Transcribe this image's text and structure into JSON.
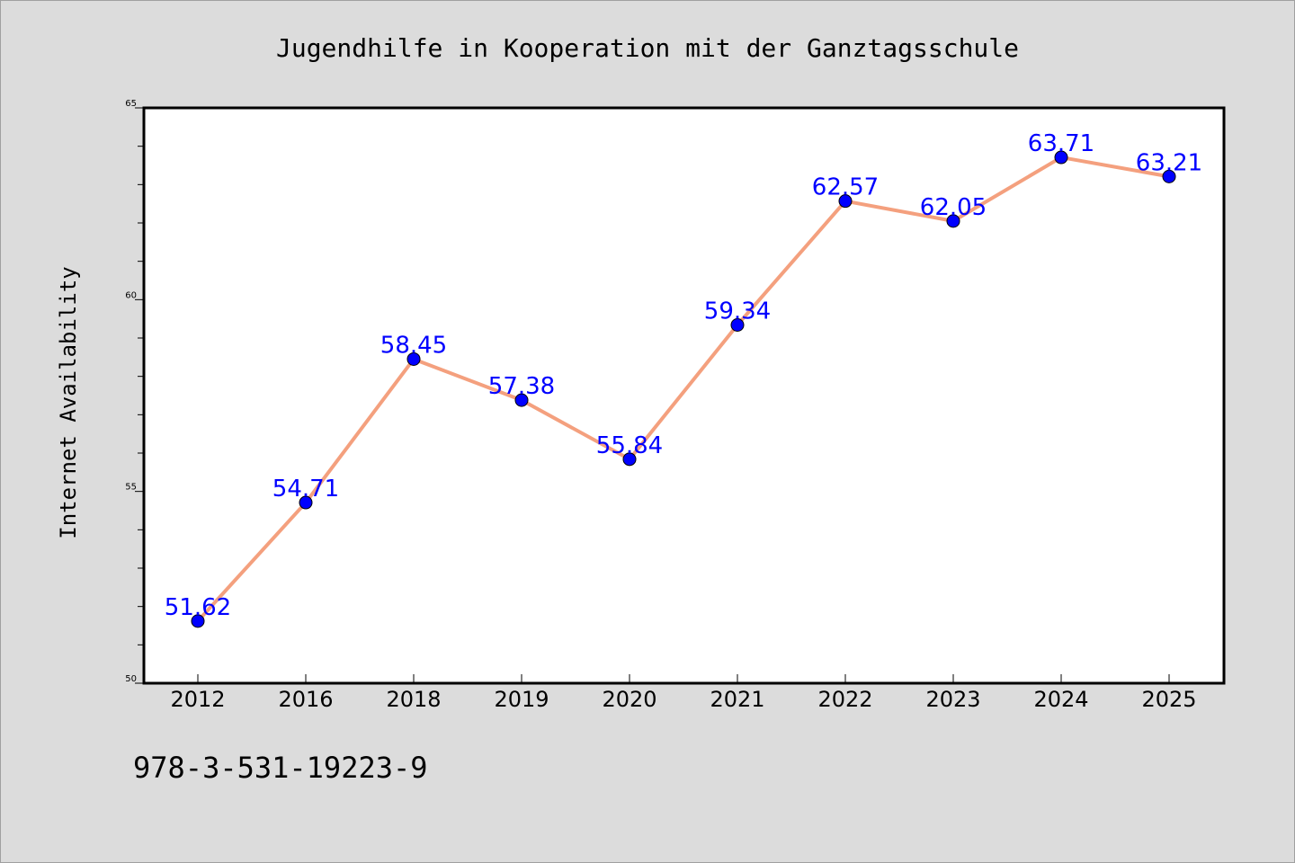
{
  "chart_data": {
    "type": "line",
    "title": "Jugendhilfe in Kooperation mit der Ganztagsschule",
    "xlabel": "",
    "ylabel": "Internet Availability",
    "categories": [
      "2012",
      "2016",
      "2018",
      "2019",
      "2020",
      "2021",
      "2022",
      "2023",
      "2024",
      "2025"
    ],
    "values": [
      51.62,
      54.71,
      58.45,
      57.38,
      55.84,
      59.34,
      62.57,
      62.05,
      63.71,
      63.21
    ],
    "data_labels": [
      "51.62",
      "54.71",
      "58.45",
      "57.38",
      "55.84",
      "59.34",
      "62.57",
      "62.05",
      "63.71",
      "63.21"
    ],
    "ylim": [
      50,
      65
    ],
    "y_ticks": [
      "50",
      "55",
      "60",
      "65"
    ],
    "grid": false,
    "legend": "none",
    "colors": {
      "line": "#f4a07e",
      "marker": "#0000ff",
      "label": "#0000ff",
      "background": "#dcdcdc",
      "plot_background": "#ffffff"
    }
  },
  "footnote": "978-3-531-19223-9"
}
